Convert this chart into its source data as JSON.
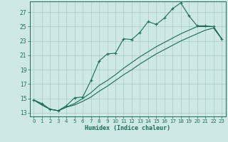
{
  "xlabel": "Humidex (Indice chaleur)",
  "background_color": "#cde8e5",
  "grid_color": "#aaccca",
  "line_color": "#1a6b5a",
  "xlim": [
    -0.5,
    23.5
  ],
  "ylim": [
    12.5,
    28.5
  ],
  "xticks": [
    0,
    1,
    2,
    3,
    4,
    5,
    6,
    7,
    8,
    9,
    10,
    11,
    12,
    13,
    14,
    15,
    16,
    17,
    18,
    19,
    20,
    21,
    22,
    23
  ],
  "yticks": [
    13,
    15,
    17,
    19,
    21,
    23,
    25,
    27
  ],
  "line1_x": [
    0,
    1,
    2,
    3,
    4,
    5,
    6,
    7,
    8,
    9,
    10,
    11,
    12,
    13,
    14,
    15,
    16,
    17,
    18,
    19,
    20,
    21,
    22,
    23
  ],
  "line1_y": [
    14.8,
    14.3,
    13.5,
    13.3,
    14.0,
    15.1,
    15.2,
    17.5,
    20.2,
    21.2,
    21.3,
    23.3,
    23.2,
    24.2,
    25.7,
    25.3,
    26.2,
    27.5,
    28.3,
    26.5,
    25.1,
    25.1,
    25.0,
    23.3
  ],
  "line2_x": [
    0,
    1,
    2,
    3,
    4,
    5,
    6,
    7,
    8,
    9,
    10,
    11,
    12,
    13,
    14,
    15,
    16,
    17,
    18,
    19,
    20,
    21,
    22,
    23
  ],
  "line2_y": [
    14.8,
    14.1,
    13.5,
    13.3,
    13.8,
    14.3,
    15.0,
    15.8,
    16.8,
    17.5,
    18.3,
    19.2,
    20.0,
    20.8,
    21.5,
    22.2,
    22.8,
    23.4,
    24.0,
    24.5,
    25.0,
    25.0,
    25.0,
    23.3
  ],
  "line3_x": [
    0,
    1,
    2,
    3,
    4,
    5,
    6,
    7,
    8,
    9,
    10,
    11,
    12,
    13,
    14,
    15,
    16,
    17,
    18,
    19,
    20,
    21,
    22,
    23
  ],
  "line3_y": [
    14.8,
    14.1,
    13.5,
    13.3,
    13.8,
    14.1,
    14.6,
    15.2,
    16.0,
    16.7,
    17.5,
    18.3,
    19.0,
    19.8,
    20.5,
    21.2,
    21.8,
    22.4,
    23.0,
    23.5,
    24.0,
    24.5,
    24.8,
    23.3
  ]
}
